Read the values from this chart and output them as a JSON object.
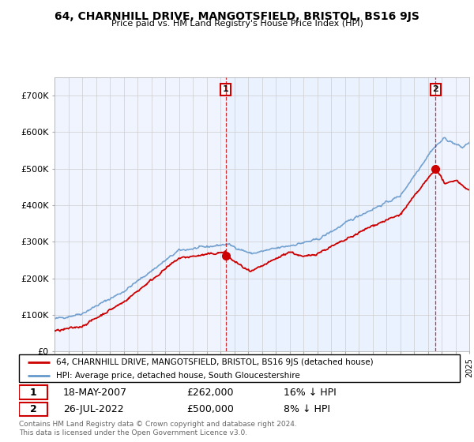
{
  "title": "64, CHARNHILL DRIVE, MANGOTSFIELD, BRISTOL, BS16 9JS",
  "subtitle": "Price paid vs. HM Land Registry's House Price Index (HPI)",
  "legend_line1": "64, CHARNHILL DRIVE, MANGOTSFIELD, BRISTOL, BS16 9JS (detached house)",
  "legend_line2": "HPI: Average price, detached house, South Gloucestershire",
  "footer": "Contains HM Land Registry data © Crown copyright and database right 2024.\nThis data is licensed under the Open Government Licence v3.0.",
  "sale1_date": "18-MAY-2007",
  "sale1_price": "£262,000",
  "sale1_hpi": "16% ↓ HPI",
  "sale2_date": "26-JUL-2022",
  "sale2_price": "£500,000",
  "sale2_hpi": "8% ↓ HPI",
  "red_color": "#cc0000",
  "blue_color": "#6699cc",
  "shade_color": "#ddeeff",
  "ylim": [
    0,
    750000
  ],
  "yticks": [
    0,
    100000,
    200000,
    300000,
    400000,
    500000,
    600000,
    700000
  ],
  "ytick_labels": [
    "£0",
    "£100K",
    "£200K",
    "£300K",
    "£400K",
    "£500K",
    "£600K",
    "£700K"
  ],
  "sale1_x": 2007.38,
  "sale1_y": 262000,
  "sale2_x": 2022.57,
  "sale2_y": 500000,
  "xmin": 1995,
  "xmax": 2025
}
